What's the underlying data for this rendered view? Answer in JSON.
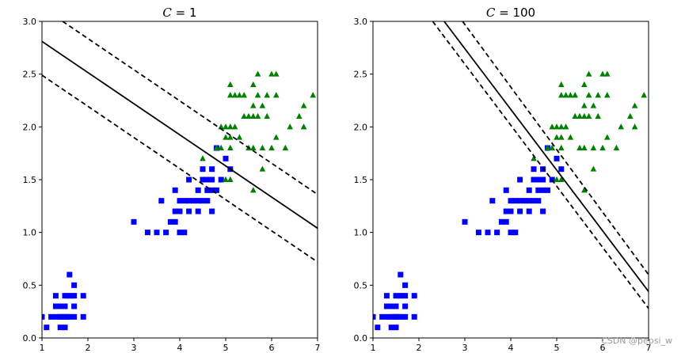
{
  "chart_data": [
    {
      "type": "scatter",
      "title_prefix": "C",
      "title_value": "1",
      "xlim": [
        1,
        7
      ],
      "ylim": [
        0,
        3
      ],
      "xticks": [
        1,
        2,
        3,
        4,
        5,
        6,
        7
      ],
      "yticks": [
        0.0,
        0.5,
        1.0,
        1.5,
        2.0,
        2.5,
        3.0
      ],
      "ytick_labels": [
        "0.0",
        "0.5",
        "1.0",
        "1.5",
        "2.0",
        "2.5",
        "3.0"
      ],
      "boundary": {
        "decision": [
          [
            1.0,
            2.81
          ],
          [
            7.0,
            1.04
          ]
        ],
        "margin_upper": [
          [
            1.45,
            3.0
          ],
          [
            7.0,
            1.36
          ]
        ],
        "margin_lower": [
          [
            1.0,
            2.49
          ],
          [
            7.0,
            0.72
          ]
        ]
      }
    },
    {
      "type": "scatter",
      "title_prefix": "C",
      "title_value": "100",
      "xlim": [
        1,
        7
      ],
      "ylim": [
        0,
        3
      ],
      "xticks": [
        1,
        2,
        3,
        4,
        5,
        6,
        7
      ],
      "yticks": [
        0.0,
        0.5,
        1.0,
        1.5,
        2.0,
        2.5,
        3.0
      ],
      "ytick_labels": [
        "0.0",
        "0.5",
        "1.0",
        "1.5",
        "2.0",
        "2.5",
        "3.0"
      ],
      "boundary": {
        "decision": [
          [
            2.55,
            3.0
          ],
          [
            7.0,
            0.44
          ]
        ],
        "margin_upper": [
          [
            2.95,
            3.0
          ],
          [
            7.0,
            0.6
          ]
        ],
        "margin_lower": [
          [
            2.3,
            3.0
          ],
          [
            7.0,
            0.28
          ]
        ]
      }
    }
  ],
  "series": {
    "blue_squares": {
      "color": "#0000ff",
      "points": [
        [
          1.0,
          0.2
        ],
        [
          1.1,
          0.1
        ],
        [
          1.2,
          0.2
        ],
        [
          1.3,
          0.2
        ],
        [
          1.3,
          0.3
        ],
        [
          1.3,
          0.4
        ],
        [
          1.4,
          0.1
        ],
        [
          1.4,
          0.2
        ],
        [
          1.4,
          0.3
        ],
        [
          1.5,
          0.1
        ],
        [
          1.5,
          0.2
        ],
        [
          1.5,
          0.3
        ],
        [
          1.5,
          0.4
        ],
        [
          1.6,
          0.2
        ],
        [
          1.6,
          0.4
        ],
        [
          1.6,
          0.6
        ],
        [
          1.7,
          0.2
        ],
        [
          1.7,
          0.3
        ],
        [
          1.7,
          0.4
        ],
        [
          1.7,
          0.5
        ],
        [
          1.9,
          0.2
        ],
        [
          1.9,
          0.4
        ],
        [
          1.55,
          0.2
        ],
        [
          1.45,
          0.2
        ],
        [
          3.0,
          1.1
        ],
        [
          3.3,
          1.0
        ],
        [
          3.5,
          1.0
        ],
        [
          3.6,
          1.3
        ],
        [
          3.7,
          1.0
        ],
        [
          3.8,
          1.1
        ],
        [
          3.9,
          1.1
        ],
        [
          3.9,
          1.2
        ],
        [
          3.9,
          1.4
        ],
        [
          4.0,
          1.0
        ],
        [
          4.0,
          1.2
        ],
        [
          4.0,
          1.3
        ],
        [
          4.1,
          1.0
        ],
        [
          4.1,
          1.3
        ],
        [
          4.2,
          1.2
        ],
        [
          4.2,
          1.3
        ],
        [
          4.2,
          1.5
        ],
        [
          4.3,
          1.3
        ],
        [
          4.4,
          1.2
        ],
        [
          4.4,
          1.3
        ],
        [
          4.4,
          1.4
        ],
        [
          4.5,
          1.3
        ],
        [
          4.5,
          1.5
        ],
        [
          4.5,
          1.6
        ],
        [
          4.6,
          1.3
        ],
        [
          4.6,
          1.4
        ],
        [
          4.6,
          1.5
        ],
        [
          4.7,
          1.2
        ],
        [
          4.7,
          1.4
        ],
        [
          4.7,
          1.5
        ],
        [
          4.7,
          1.6
        ],
        [
          4.8,
          1.4
        ],
        [
          4.8,
          1.8
        ],
        [
          4.9,
          1.5
        ],
        [
          5.0,
          1.7
        ],
        [
          5.1,
          1.6
        ]
      ]
    },
    "green_triangles": {
      "color": "#008000",
      "points": [
        [
          4.5,
          1.7
        ],
        [
          4.8,
          1.8
        ],
        [
          4.9,
          1.8
        ],
        [
          4.9,
          2.0
        ],
        [
          5.0,
          1.5
        ],
        [
          5.0,
          1.9
        ],
        [
          5.0,
          2.0
        ],
        [
          5.1,
          1.5
        ],
        [
          5.1,
          1.8
        ],
        [
          5.1,
          1.9
        ],
        [
          5.1,
          2.0
        ],
        [
          5.1,
          2.3
        ],
        [
          5.1,
          2.4
        ],
        [
          5.2,
          2.0
        ],
        [
          5.2,
          2.3
        ],
        [
          5.3,
          1.9
        ],
        [
          5.3,
          2.3
        ],
        [
          5.4,
          2.1
        ],
        [
          5.4,
          2.3
        ],
        [
          5.5,
          1.8
        ],
        [
          5.5,
          2.1
        ],
        [
          5.6,
          1.4
        ],
        [
          5.6,
          1.8
        ],
        [
          5.6,
          2.1
        ],
        [
          5.6,
          2.2
        ],
        [
          5.6,
          2.4
        ],
        [
          5.7,
          2.1
        ],
        [
          5.7,
          2.3
        ],
        [
          5.7,
          2.5
        ],
        [
          5.8,
          1.6
        ],
        [
          5.8,
          1.8
        ],
        [
          5.8,
          2.2
        ],
        [
          5.9,
          2.1
        ],
        [
          5.9,
          2.3
        ],
        [
          6.0,
          1.8
        ],
        [
          6.0,
          2.5
        ],
        [
          6.1,
          1.9
        ],
        [
          6.1,
          2.3
        ],
        [
          6.1,
          2.5
        ],
        [
          6.3,
          1.8
        ],
        [
          6.4,
          2.0
        ],
        [
          6.6,
          2.1
        ],
        [
          6.7,
          2.0
        ],
        [
          6.7,
          2.2
        ],
        [
          6.9,
          2.3
        ]
      ]
    }
  },
  "watermark": "CSDN @pepsi_w"
}
